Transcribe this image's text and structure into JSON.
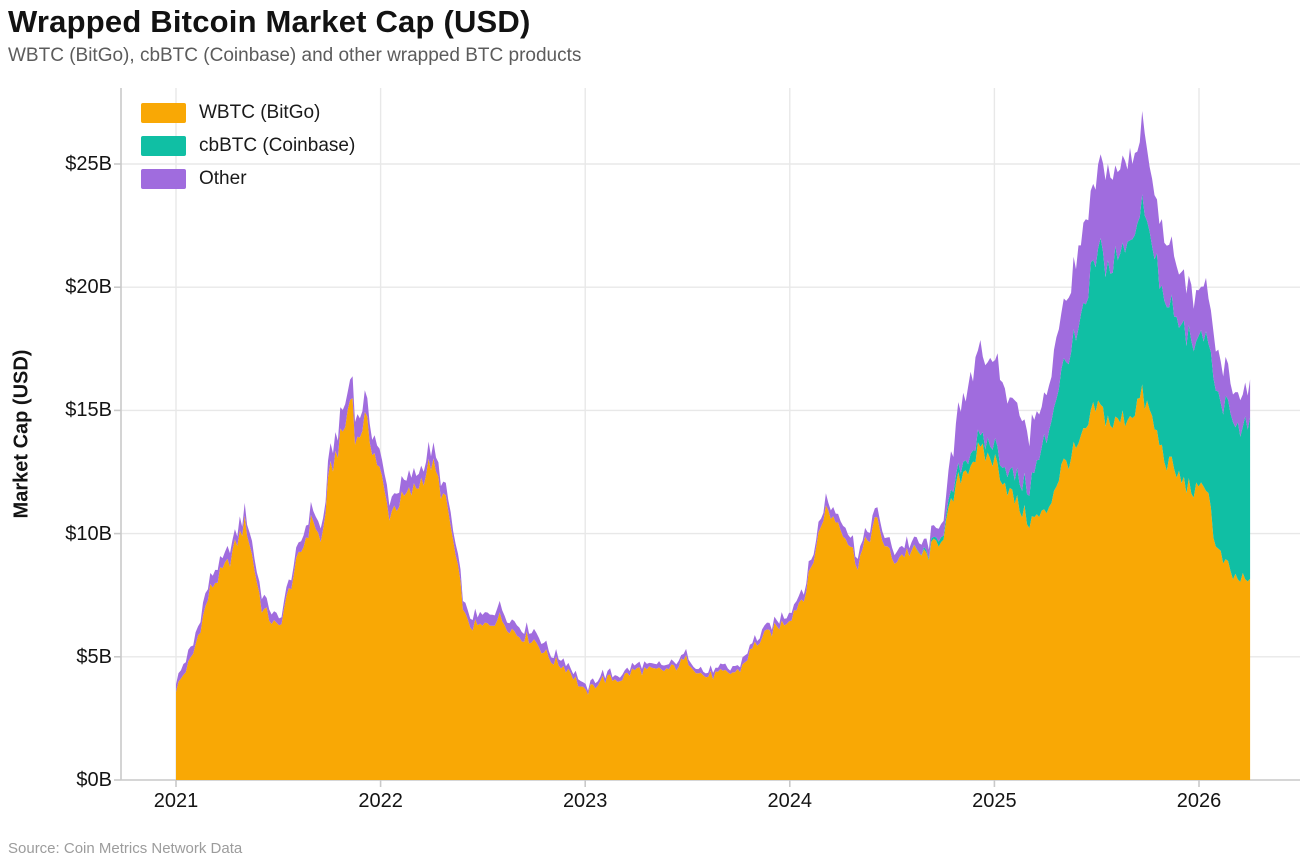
{
  "header": {
    "title": "Wrapped Bitcoin Market Cap (USD)",
    "subtitle": "WBTC (BitGo), cbBTC (Coinbase) and other wrapped BTC products"
  },
  "source_text": "Source: Coin Metrics Network Data",
  "colors": {
    "wbtc": "#F9A805",
    "cbbtc": "#10BFA4",
    "other": "#A06CDE",
    "grid": "#E8E8E8",
    "axis": "#C9C9C9",
    "tick_text": "#141414"
  },
  "legend": [
    {
      "id": "wbtc",
      "label": "WBTC (BitGo)"
    },
    {
      "id": "cbbtc",
      "label": "cbBTC (Coinbase)"
    },
    {
      "id": "other",
      "label": "Other"
    }
  ],
  "y_axis": {
    "label": "Market Cap (USD)",
    "ticks": [
      0,
      5,
      10,
      15,
      20,
      25
    ],
    "tick_labels": [
      "$0B",
      "$5B",
      "$10B",
      "$15B",
      "$20B",
      "$25B"
    ]
  },
  "x_axis": {
    "ticks": [
      2021,
      2022,
      2023,
      2024,
      2025,
      2026
    ],
    "tick_labels": [
      "2021",
      "2022",
      "2023",
      "2024",
      "2025",
      "2026"
    ]
  },
  "chart_data": {
    "type": "area",
    "stacked": true,
    "title": "Wrapped Bitcoin Market Cap (USD)",
    "xlabel": "",
    "ylabel": "Market Cap (USD)",
    "ylim": [
      0,
      28
    ],
    "xlim": [
      2021.0,
      2026.25
    ],
    "grid": true,
    "legend_position": "top-left-inside",
    "x_unit": "decimal-year",
    "y_unit": "billion USD",
    "x": [
      2021.0,
      2021.08,
      2021.17,
      2021.25,
      2021.34,
      2021.42,
      2021.5,
      2021.58,
      2021.67,
      2021.71,
      2021.75,
      2021.83,
      2021.86,
      2021.88,
      2021.92,
      2022.0,
      2022.04,
      2022.08,
      2022.17,
      2022.25,
      2022.33,
      2022.42,
      2022.5,
      2022.58,
      2022.67,
      2022.75,
      2022.83,
      2022.92,
      2023.0,
      2023.08,
      2023.17,
      2023.25,
      2023.33,
      2023.42,
      2023.5,
      2023.58,
      2023.67,
      2023.75,
      2023.83,
      2023.92,
      2024.0,
      2024.08,
      2024.17,
      2024.25,
      2024.33,
      2024.42,
      2024.5,
      2024.58,
      2024.67,
      2024.75,
      2024.83,
      2024.92,
      2025.0,
      2025.08,
      2025.17,
      2025.25,
      2025.33,
      2025.42,
      2025.5,
      2025.58,
      2025.67,
      2025.72,
      2025.75,
      2025.83,
      2025.92,
      2026.0,
      2026.04,
      2026.08,
      2026.17,
      2026.25
    ],
    "series": [
      {
        "name": "WBTC (BitGo)",
        "color_key": "wbtc",
        "values": [
          3.7,
          5.0,
          7.8,
          8.7,
          10.5,
          7.0,
          6.1,
          8.5,
          10.7,
          9.5,
          12.4,
          14.5,
          15.9,
          13.5,
          14.7,
          12.4,
          10.8,
          11.2,
          11.8,
          12.9,
          10.9,
          6.3,
          6.2,
          6.6,
          5.9,
          5.7,
          4.9,
          4.5,
          3.5,
          4.1,
          4.1,
          4.5,
          4.4,
          4.5,
          4.9,
          4.2,
          4.3,
          4.4,
          5.5,
          6.1,
          6.6,
          7.7,
          11.0,
          10.4,
          8.8,
          10.5,
          8.9,
          9.3,
          9.1,
          10.0,
          12.3,
          13.3,
          13.0,
          11.6,
          10.5,
          10.8,
          12.7,
          13.6,
          15.2,
          14.4,
          14.9,
          15.6,
          15.1,
          13.1,
          12.1,
          11.6,
          12.2,
          9.4,
          8.2,
          8.0
        ]
      },
      {
        "name": "cbBTC (Coinbase)",
        "color_key": "cbbtc",
        "values": [
          0,
          0,
          0,
          0,
          0,
          0,
          0,
          0,
          0,
          0,
          0,
          0,
          0,
          0,
          0,
          0,
          0,
          0,
          0,
          0,
          0,
          0,
          0,
          0,
          0,
          0,
          0,
          0,
          0,
          0,
          0,
          0,
          0,
          0,
          0,
          0,
          0,
          0,
          0,
          0,
          0,
          0,
          0,
          0,
          0,
          0,
          0,
          0,
          0.05,
          0.2,
          0.4,
          0.5,
          0.6,
          0.8,
          1.4,
          3.0,
          3.8,
          4.6,
          6.3,
          6.6,
          7.1,
          7.9,
          7.4,
          6.4,
          6.1,
          6.1,
          6.3,
          6.3,
          6.3,
          6.2
        ]
      },
      {
        "name": "Other",
        "color_key": "other",
        "values": [
          0.35,
          0.4,
          0.55,
          0.5,
          0.45,
          0.5,
          0.35,
          0.4,
          0.5,
          0.45,
          0.6,
          0.85,
          0.9,
          0.8,
          0.8,
          0.7,
          0.6,
          0.6,
          0.6,
          0.6,
          0.5,
          0.4,
          0.4,
          0.4,
          0.35,
          0.35,
          0.3,
          0.25,
          0.2,
          0.2,
          0.2,
          0.2,
          0.2,
          0.2,
          0.2,
          0.2,
          0.2,
          0.2,
          0.25,
          0.3,
          0.3,
          0.35,
          0.4,
          0.4,
          0.4,
          0.4,
          0.4,
          0.4,
          0.4,
          0.5,
          2.3,
          3.6,
          3.4,
          3.1,
          2.2,
          1.7,
          2.5,
          3.1,
          3.3,
          3.6,
          3.3,
          3.2,
          2.7,
          2.4,
          2.1,
          1.9,
          2.0,
          1.6,
          1.3,
          1.5
        ]
      }
    ]
  }
}
